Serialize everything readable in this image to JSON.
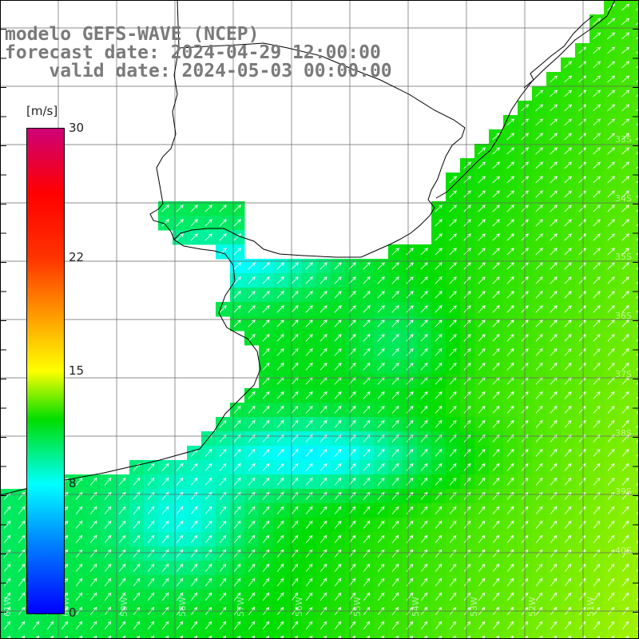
{
  "header": {
    "model_line": "modelo GEFS-WAVE (NCEP)",
    "forecast_line": "forecast date: 2024-04-29 12:00:00",
    "valid_line": "    valid date: 2024-05-03 00:00:00"
  },
  "colorbar": {
    "unit": "[m/s]",
    "ticks": [
      {
        "label": "30",
        "value": 30
      },
      {
        "label": "22",
        "value": 22
      },
      {
        "label": "15",
        "value": 15
      },
      {
        "label": "8",
        "value": 8
      },
      {
        "label": "0",
        "value": 0
      }
    ],
    "range": [
      0,
      30
    ],
    "stops": [
      {
        "value": 0,
        "color": "#0000ff"
      },
      {
        "value": 4,
        "color": "#0077ff"
      },
      {
        "value": 8,
        "color": "#00ffff"
      },
      {
        "value": 12,
        "color": "#00dd00"
      },
      {
        "value": 15,
        "color": "#ffff00"
      },
      {
        "value": 22,
        "color": "#ff3300"
      },
      {
        "value": 26,
        "color": "#ff0000"
      },
      {
        "value": 30,
        "color": "#cc0077"
      }
    ]
  },
  "map": {
    "longitude_labels": [
      "61W",
      "60W",
      "59W",
      "58W",
      "57W",
      "56W",
      "55W",
      "54W",
      "53W",
      "52W",
      "51W"
    ],
    "latitude_labels": [
      "33S",
      "34S",
      "35S",
      "36S",
      "37S",
      "38S",
      "39S",
      "40S"
    ],
    "land_color": "#ffffff",
    "grid_color": "#666666",
    "coast_color": "#000000",
    "arrow_color": "#ffffff"
  }
}
